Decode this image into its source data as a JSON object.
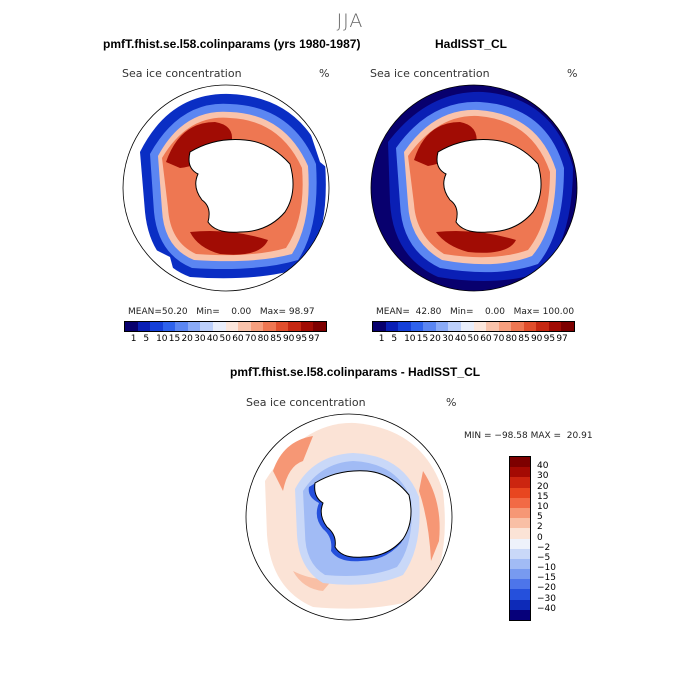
{
  "header": {
    "season": "JJA"
  },
  "panel1": {
    "title": "pmfT.fhist.se.l58.colinparams (yrs 1980-1987)",
    "map_label": "Sea ice concentration",
    "unit": "%",
    "stats": {
      "mean_label": "MEAN=",
      "mean": "50.20",
      "min_label": "Min=",
      "min": "0.00",
      "max_label": "Max=",
      "max": "98.97"
    }
  },
  "panel2": {
    "title": "HadISST_CL",
    "map_label": "Sea ice concentration",
    "unit": "%",
    "stats": {
      "mean_label": "MEAN=",
      "mean": "42.80",
      "min_label": "Min=",
      "min": "0.00",
      "max_label": "Max=",
      "max": "100.00"
    }
  },
  "panel3": {
    "title": "pmfT.fhist.se.l58.colinparams - HadISST_CL",
    "map_label": "Sea ice concentration",
    "unit": "%",
    "minmax": "MIN = −98.58 MAX =  20.91"
  },
  "colorbar_abs": {
    "ticks": [
      "1",
      "5",
      "10",
      "15",
      "20",
      "30",
      "40",
      "50",
      "60",
      "70",
      "80",
      "85",
      "90",
      "95",
      "97"
    ],
    "colors": [
      "#08006e",
      "#0a1fb5",
      "#1540d8",
      "#2e62ec",
      "#5b86f2",
      "#8aaaf6",
      "#bdd0fb",
      "#e9eefb",
      "#fbe6dc",
      "#f9c3ab",
      "#f69f7e",
      "#ee7752",
      "#e04e2c",
      "#c52812",
      "#a10c04",
      "#7d0000"
    ]
  },
  "colorbar_diff": {
    "ticks": [
      "40",
      "30",
      "20",
      "15",
      "10",
      "5",
      "2",
      "0",
      "−2",
      "−5",
      "−10",
      "−15",
      "−20",
      "−30",
      "−40"
    ],
    "colors": [
      "#7d0000",
      "#a40a03",
      "#cc2510",
      "#e84620",
      "#f26a45",
      "#f69775",
      "#f9bfa5",
      "#fbe3d6",
      "#eef2fb",
      "#c9d8f8",
      "#a1bbf5",
      "#779af0",
      "#4d75ea",
      "#2550dc",
      "#0d2ab8",
      "#06007a"
    ]
  }
}
